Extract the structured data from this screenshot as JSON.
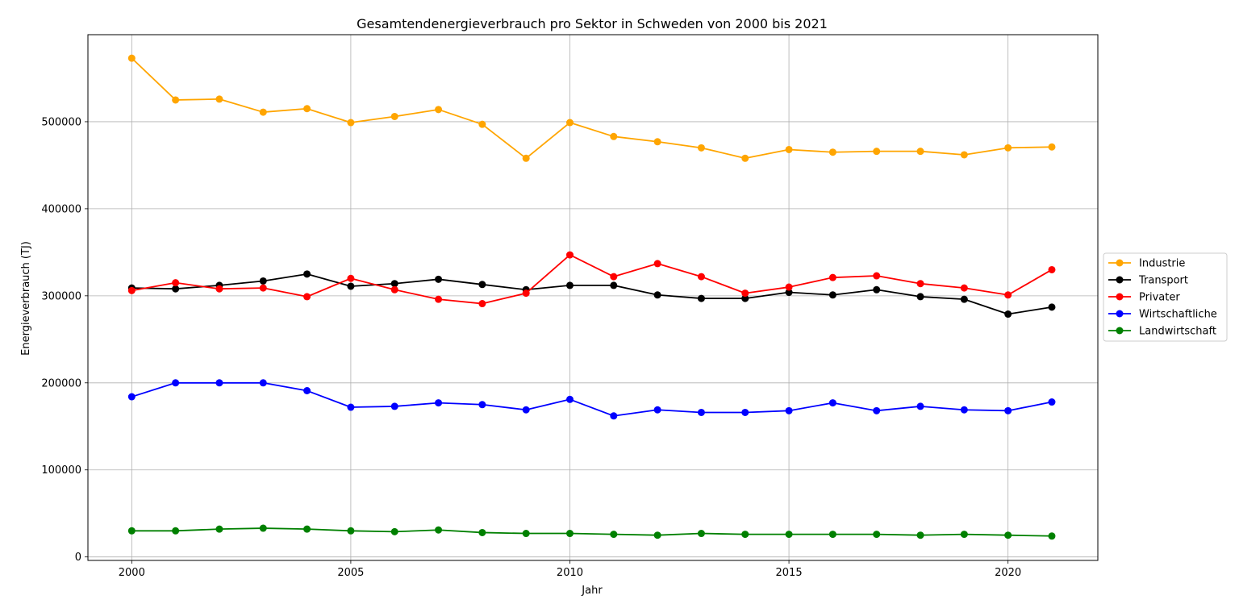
{
  "chart_data": {
    "type": "line",
    "title": "Gesamtendenergieverbrauch pro Sektor in Schweden von 2000 bis 2021",
    "xlabel": "Jahr",
    "ylabel": "Energieverbrauch (TJ)",
    "x": [
      2000,
      2001,
      2002,
      2003,
      2004,
      2005,
      2006,
      2007,
      2008,
      2009,
      2010,
      2011,
      2012,
      2013,
      2014,
      2015,
      2016,
      2017,
      2018,
      2019,
      2020,
      2021
    ],
    "xlim": [
      1999,
      2022.05
    ],
    "ylim": [
      -4000,
      600000
    ],
    "xticks": [
      2000,
      2005,
      2010,
      2015,
      2020
    ],
    "xtick_labels": [
      "2000",
      "2005",
      "2010",
      "2015",
      "2020"
    ],
    "yticks": [
      0,
      100000,
      200000,
      300000,
      400000,
      500000
    ],
    "ytick_labels": [
      "0",
      "100000",
      "200000",
      "300000",
      "400000",
      "500000"
    ],
    "grid": true,
    "legend_position": "center-right outside",
    "series": [
      {
        "name": "Industrie",
        "color": "#FFA500",
        "values": [
          573000,
          525000,
          526000,
          511000,
          515000,
          499000,
          506000,
          514000,
          497000,
          458000,
          499000,
          483000,
          477000,
          470000,
          458000,
          468000,
          465000,
          466000,
          466000,
          462000,
          470000,
          471000
        ]
      },
      {
        "name": "Transport",
        "color": "#000000",
        "values": [
          309000,
          308000,
          312000,
          317000,
          325000,
          311000,
          314000,
          319000,
          313000,
          307000,
          312000,
          312000,
          301000,
          297000,
          297000,
          304000,
          301000,
          307000,
          299000,
          296000,
          279000,
          287000
        ]
      },
      {
        "name": "Privater",
        "color": "#FF0000",
        "values": [
          306000,
          315000,
          308000,
          309000,
          299000,
          320000,
          307000,
          296000,
          291000,
          303000,
          347000,
          322000,
          337000,
          322000,
          303000,
          310000,
          321000,
          323000,
          314000,
          309000,
          301000,
          330000
        ]
      },
      {
        "name": "Wirtschaftliche",
        "color": "#0000FF",
        "values": [
          184000,
          200000,
          200000,
          200000,
          191000,
          172000,
          173000,
          177000,
          175000,
          169000,
          181000,
          162000,
          169000,
          166000,
          166000,
          168000,
          177000,
          168000,
          173000,
          169000,
          168000,
          178000
        ]
      },
      {
        "name": "Landwirtschaft",
        "color": "#008000",
        "values": [
          30000,
          30000,
          32000,
          33000,
          32000,
          30000,
          29000,
          31000,
          28000,
          27000,
          27000,
          26000,
          25000,
          27000,
          26000,
          26000,
          26000,
          26000,
          25000,
          26000,
          25000,
          24000
        ]
      }
    ]
  }
}
